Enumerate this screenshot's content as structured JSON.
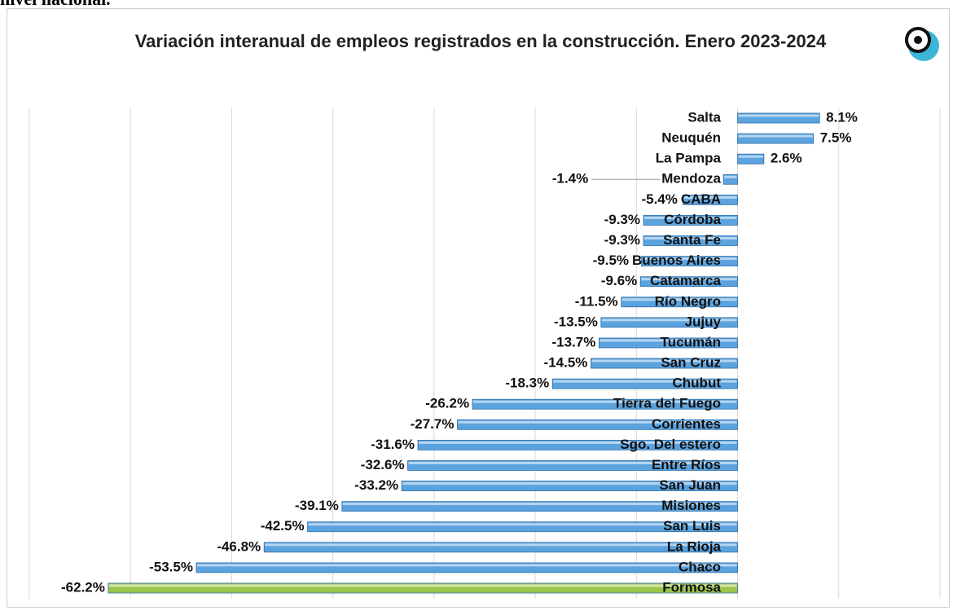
{
  "header": {
    "text": "nivel nacional."
  },
  "chart_data": {
    "type": "bar",
    "orientation": "horizontal",
    "title": "Variación interanual de empleos registrados en la construcción. Enero 2023-2024",
    "categories": [
      "Salta",
      "Neuquén",
      "La Pampa",
      "Mendoza",
      "CABA",
      "Córdoba",
      "Santa Fe",
      "Buenos Aires",
      "Catamarca",
      "Río Negro",
      "Jujuy",
      "Tucumán",
      "San Cruz",
      "Chubut",
      "Tierra del Fuego",
      "Corrientes",
      "Sgo. Del estero",
      "Entre Ríos",
      "San Juan",
      "Misiones",
      "San Luis",
      "La Rioja",
      "Chaco",
      "Formosa"
    ],
    "values": [
      8.1,
      7.5,
      2.6,
      -1.4,
      -5.4,
      -9.3,
      -9.3,
      -9.5,
      -9.6,
      -11.5,
      -13.5,
      -13.7,
      -14.5,
      -18.3,
      -26.2,
      -27.7,
      -31.6,
      -32.6,
      -33.2,
      -39.1,
      -42.5,
      -46.8,
      -53.5,
      -62.2
    ],
    "value_labels": [
      "8.1%",
      "7.5%",
      "2.6%",
      "-1.4%",
      "-5.4%",
      "-9.3%",
      "-9.3%",
      "-9.5%",
      "-9.6%",
      "-11.5%",
      "-13.5%",
      "-13.7%",
      "-14.5%",
      "-18.3%",
      "-26.2%",
      "-27.7%",
      "-31.6%",
      "-32.6%",
      "-33.2%",
      "-39.1%",
      "-42.5%",
      "-46.8%",
      "-53.5%",
      "-62.2%"
    ],
    "colors": [
      "#5ba3de",
      "#5ba3de",
      "#5ba3de",
      "#5ba3de",
      "#5ba3de",
      "#5ba3de",
      "#5ba3de",
      "#5ba3de",
      "#5ba3de",
      "#5ba3de",
      "#5ba3de",
      "#5ba3de",
      "#5ba3de",
      "#5ba3de",
      "#5ba3de",
      "#5ba3de",
      "#5ba3de",
      "#5ba3de",
      "#5ba3de",
      "#5ba3de",
      "#5ba3de",
      "#5ba3de",
      "#5ba3de",
      "#9bc44a"
    ],
    "xlim": [
      -70,
      20
    ],
    "xticks": [
      -70,
      -60,
      -50,
      -40,
      -30,
      -20,
      -10,
      0,
      10,
      20
    ],
    "grid": true
  }
}
